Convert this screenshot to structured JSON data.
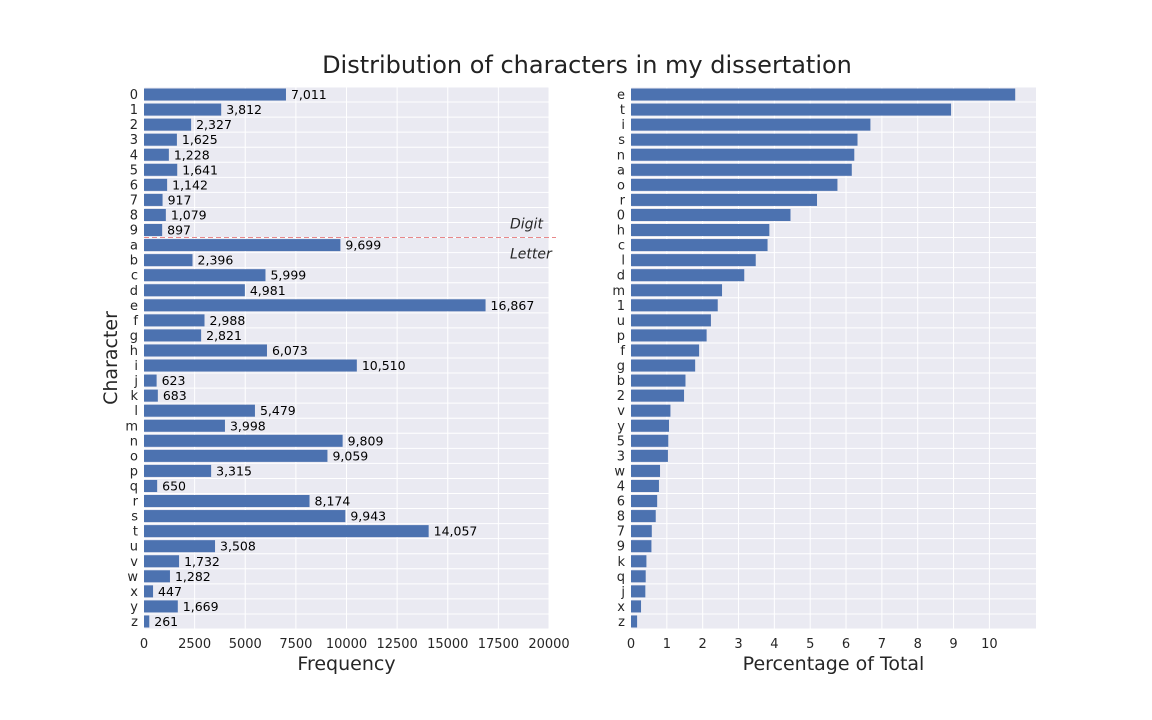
{
  "figure": {
    "title": "Distribution of characters in my dissertation"
  },
  "colors": {
    "bar": "#4c72b0",
    "axes_bg": "#eaeaf2",
    "grid": "#ffffff",
    "divider": "#e8888a"
  },
  "chart_data": [
    {
      "type": "bar",
      "orientation": "horizontal",
      "xlabel": "Frequency",
      "ylabel": "Character",
      "xlim": [
        0,
        20000
      ],
      "xticks": [
        "0",
        "2500",
        "5000",
        "7500",
        "10000",
        "12500",
        "15000",
        "17500",
        "20000"
      ],
      "grid": true,
      "categories": [
        "0",
        "1",
        "2",
        "3",
        "4",
        "5",
        "6",
        "7",
        "8",
        "9",
        "a",
        "b",
        "c",
        "d",
        "e",
        "f",
        "g",
        "h",
        "i",
        "j",
        "k",
        "l",
        "m",
        "n",
        "o",
        "p",
        "q",
        "r",
        "s",
        "t",
        "u",
        "v",
        "w",
        "x",
        "y",
        "z"
      ],
      "values": [
        7011,
        3812,
        2327,
        1625,
        1228,
        1641,
        1142,
        917,
        1079,
        897,
        9699,
        2396,
        5999,
        4981,
        16867,
        2988,
        2821,
        6073,
        10510,
        623,
        683,
        5479,
        3998,
        9809,
        9059,
        3315,
        650,
        8174,
        9943,
        14057,
        3508,
        1732,
        1282,
        447,
        1669,
        261
      ],
      "value_labels": [
        "7,011",
        "3,812",
        "2,327",
        "1,625",
        "1,228",
        "1,641",
        "1,142",
        "917",
        "1,079",
        "897",
        "9,699",
        "2,396",
        "5,999",
        "4,981",
        "16,867",
        "2,988",
        "2,821",
        "6,073",
        "10,510",
        "623",
        "683",
        "5,479",
        "3,998",
        "9,809",
        "9,059",
        "3,315",
        "650",
        "8,174",
        "9,943",
        "14,057",
        "3,508",
        "1,732",
        "1,282",
        "447",
        "1,669",
        "261"
      ],
      "annotations": [
        {
          "text": "Digit",
          "group": "digits"
        },
        {
          "text": "Letter",
          "group": "letters"
        }
      ],
      "divider_between": [
        "9",
        "a"
      ]
    },
    {
      "type": "bar",
      "orientation": "horizontal",
      "xlabel": "Percentage of Total",
      "ylabel": "",
      "xlim": [
        0,
        11.3
      ],
      "xticks": [
        "0",
        "1",
        "2",
        "3",
        "4",
        "5",
        "6",
        "7",
        "8",
        "9",
        "10"
      ],
      "grid": true,
      "categories": [
        "e",
        "t",
        "i",
        "s",
        "n",
        "a",
        "o",
        "r",
        "0",
        "h",
        "c",
        "l",
        "d",
        "m",
        "1",
        "u",
        "p",
        "f",
        "g",
        "b",
        "2",
        "v",
        "y",
        "5",
        "3",
        "w",
        "4",
        "6",
        "8",
        "7",
        "9",
        "k",
        "q",
        "j",
        "x",
        "z"
      ],
      "values": [
        10.72,
        8.93,
        6.68,
        6.32,
        6.23,
        6.16,
        5.76,
        5.19,
        4.45,
        3.86,
        3.81,
        3.48,
        3.16,
        2.54,
        2.42,
        2.23,
        2.11,
        1.9,
        1.79,
        1.52,
        1.48,
        1.1,
        1.06,
        1.04,
        1.03,
        0.81,
        0.78,
        0.73,
        0.69,
        0.58,
        0.57,
        0.43,
        0.41,
        0.4,
        0.28,
        0.17
      ]
    }
  ]
}
